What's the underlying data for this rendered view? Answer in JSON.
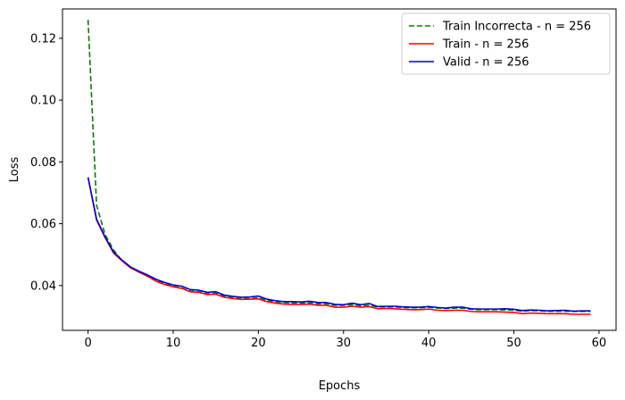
{
  "chart_data": {
    "type": "line",
    "xlabel": "Epochs",
    "ylabel": "Loss",
    "xlim": [
      -3,
      62
    ],
    "ylim": [
      0.0255,
      0.1295
    ],
    "xticks": [
      0,
      10,
      20,
      30,
      40,
      50,
      60
    ],
    "yticks": [
      0.04,
      0.06,
      0.08,
      0.1,
      0.12
    ],
    "ytick_labels": [
      "0.04",
      "0.06",
      "0.08",
      "0.10",
      "0.12"
    ],
    "xtick_labels": [
      "0",
      "10",
      "20",
      "30",
      "40",
      "50",
      "60"
    ],
    "grid": false,
    "legend_position": "top-right",
    "x": [
      0,
      1,
      2,
      3,
      4,
      5,
      6,
      7,
      8,
      9,
      10,
      11,
      12,
      13,
      14,
      15,
      16,
      17,
      18,
      19,
      20,
      21,
      22,
      23,
      24,
      25,
      26,
      27,
      28,
      29,
      30,
      31,
      32,
      33,
      34,
      35,
      36,
      37,
      38,
      39,
      40,
      41,
      42,
      43,
      44,
      45,
      46,
      47,
      48,
      49,
      50,
      51,
      52,
      53,
      54,
      55,
      56,
      57,
      58,
      59
    ],
    "series": [
      {
        "name": "Train Incorrecta - n = 256",
        "color": "#008000",
        "style": "dashed",
        "values": [
          0.126,
          0.066,
          0.0565,
          0.0515,
          0.048,
          0.0458,
          0.0443,
          0.043,
          0.0416,
          0.0406,
          0.0398,
          0.0392,
          0.0382,
          0.038,
          0.0373,
          0.0375,
          0.0365,
          0.036,
          0.0357,
          0.0358,
          0.036,
          0.0352,
          0.0347,
          0.0345,
          0.0344,
          0.0343,
          0.0344,
          0.0341,
          0.0341,
          0.0336,
          0.0336,
          0.0338,
          0.0335,
          0.0336,
          0.0331,
          0.0331,
          0.0331,
          0.0329,
          0.0328,
          0.0328,
          0.033,
          0.0327,
          0.0326,
          0.0327,
          0.0327,
          0.0323,
          0.0322,
          0.0322,
          0.0322,
          0.0321,
          0.032,
          0.0317,
          0.0319,
          0.0318,
          0.0317,
          0.0317,
          0.0317,
          0.0316,
          0.0316,
          0.0316
        ]
      },
      {
        "name": "Train - n = 256",
        "color": "#ff0000",
        "style": "solid",
        "values": [
          0.075,
          0.0612,
          0.0555,
          0.0505,
          0.048,
          0.0457,
          0.0443,
          0.043,
          0.0414,
          0.0403,
          0.0396,
          0.0391,
          0.038,
          0.0378,
          0.0371,
          0.0372,
          0.0362,
          0.0358,
          0.0355,
          0.0356,
          0.0357,
          0.0348,
          0.0343,
          0.034,
          0.0339,
          0.0339,
          0.034,
          0.0336,
          0.0336,
          0.033,
          0.033,
          0.0333,
          0.033,
          0.0332,
          0.0325,
          0.0326,
          0.0325,
          0.0323,
          0.0322,
          0.0322,
          0.0324,
          0.032,
          0.0319,
          0.032,
          0.032,
          0.0316,
          0.0315,
          0.0315,
          0.0315,
          0.0314,
          0.0313,
          0.0309,
          0.0311,
          0.031,
          0.0309,
          0.0309,
          0.0309,
          0.0307,
          0.0307,
          0.0307
        ]
      },
      {
        "name": "Valid - n = 256",
        "color": "#0000cc",
        "style": "solid",
        "values": [
          0.075,
          0.0615,
          0.0557,
          0.0508,
          0.0482,
          0.046,
          0.0446,
          0.0434,
          0.042,
          0.041,
          0.0402,
          0.0398,
          0.0387,
          0.0385,
          0.0378,
          0.038,
          0.0369,
          0.0365,
          0.0362,
          0.0363,
          0.0366,
          0.0356,
          0.0351,
          0.0348,
          0.0348,
          0.0347,
          0.0349,
          0.0345,
          0.0345,
          0.0339,
          0.0338,
          0.0343,
          0.0338,
          0.0342,
          0.0332,
          0.0333,
          0.0333,
          0.0331,
          0.033,
          0.033,
          0.0332,
          0.0329,
          0.0327,
          0.033,
          0.033,
          0.0325,
          0.0324,
          0.0324,
          0.0324,
          0.0325,
          0.0323,
          0.0319,
          0.0321,
          0.032,
          0.0318,
          0.0319,
          0.032,
          0.0317,
          0.0318,
          0.0318
        ]
      }
    ]
  }
}
